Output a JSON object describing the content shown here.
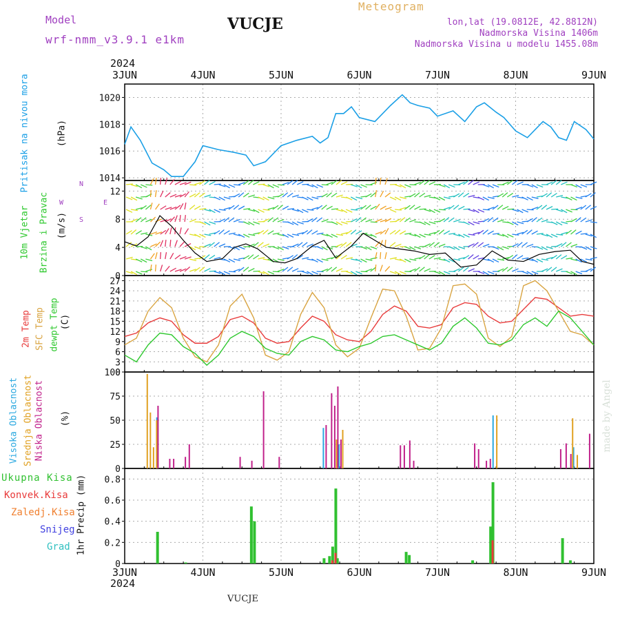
{
  "header": {
    "model_label": "Model",
    "model_name": "wrf-nmm_v3.9.1 e1km",
    "station": "VUCJE",
    "meteogram_label": "Meteogram",
    "lonlat": "lon,lat (19.0812E, 42.8812N)",
    "altitude": "Nadmorska Visina 1406m",
    "model_altitude": "Nadmorska Visina u modelu 1455.08m",
    "year_top": "2024",
    "year_bottom": "2024",
    "footer_station": "VUCJE",
    "credit": "made by Angel"
  },
  "colors": {
    "pressure": "#1a9fe6",
    "temp2m": "#e83a3a",
    "sfctemp": "#d9a441",
    "dewpt": "#2ec82e",
    "high_cloud": "#29a8e0",
    "mid_cloud": "#e0a020",
    "low_cloud": "#c0208a",
    "precip_total": "#30c030",
    "precip_conv": "#e83a3a",
    "purple_text": "#a040c0",
    "meteogram_text": "#e0b060"
  },
  "panel_labels": {
    "pressure": [
      "Pritisak na nivou mora"
    ],
    "pressure_unit": "(hPa)",
    "wind": [
      "10m Vjetar",
      "Brzina i Pravac"
    ],
    "wind_unit": "(m/s)",
    "wind_compass": "N",
    "wind_compass_s": "S",
    "wind_w": "W",
    "wind_e": "E",
    "temp": [
      "2m Temp",
      "SFC Temp",
      "dewpt Temp"
    ],
    "temp_unit": "(C)",
    "cloud": [
      "Visoka Oblacnost",
      "Srednja Oblacnost",
      "Niska Oblacnost"
    ],
    "cloud_unit": "(%)",
    "precip_legend": [
      "Ukupna Kisa",
      "Konvek.Kisa",
      "Zaledj.Kisa",
      "Snijeg",
      "Grad"
    ],
    "precip_unit": "1hr Precip (mm)"
  },
  "chart_data": [
    {
      "type": "line",
      "panel": "pressure",
      "x_labels": [
        "3JUN",
        "4JUN",
        "5JUN",
        "6JUN",
        "7JUN",
        "8JUN",
        "9JUN"
      ],
      "x": [
        0,
        0.08,
        0.2,
        0.35,
        0.5,
        0.6,
        0.75,
        0.9,
        1.0,
        1.2,
        1.4,
        1.55,
        1.65,
        1.8,
        2.0,
        2.2,
        2.4,
        2.5,
        2.6,
        2.7,
        2.8,
        2.9,
        3.0,
        3.2,
        3.4,
        3.55,
        3.65,
        3.75,
        3.9,
        4.0,
        4.2,
        4.35,
        4.5,
        4.6,
        4.75,
        4.85,
        5.0,
        5.15,
        5.35,
        5.45,
        5.55,
        5.65,
        5.75,
        5.9,
        6.0
      ],
      "series": [
        {
          "values": [
            1016.5,
            1017.8,
            1016.8,
            1015.1,
            1014.6,
            1014.1,
            1014.1,
            1015.2,
            1016.4,
            1016.1,
            1015.9,
            1015.7,
            1014.9,
            1015.2,
            1016.4,
            1016.8,
            1017.1,
            1016.6,
            1017.0,
            1018.8,
            1018.8,
            1019.3,
            1018.5,
            1018.2,
            1019.4,
            1020.2,
            1019.6,
            1019.4,
            1019.2,
            1018.6,
            1019.0,
            1018.2,
            1019.3,
            1019.6,
            1018.9,
            1018.5,
            1017.5,
            1017.0,
            1018.2,
            1017.8,
            1017.0,
            1016.8,
            1018.2,
            1017.6,
            1016.9
          ]
        }
      ],
      "ylim": [
        1013.8,
        1021
      ],
      "y_ticks": [
        1014,
        1016,
        1018,
        1020
      ]
    },
    {
      "type": "line",
      "panel": "wind",
      "x": [
        0,
        0.15,
        0.3,
        0.45,
        0.6,
        0.75,
        0.9,
        1.05,
        1.25,
        1.4,
        1.55,
        1.7,
        1.9,
        2.05,
        2.2,
        2.4,
        2.55,
        2.7,
        2.9,
        3.05,
        3.2,
        3.35,
        3.5,
        3.7,
        3.9,
        4.1,
        4.3,
        4.5,
        4.7,
        4.9,
        5.1,
        5.3,
        5.5,
        5.7,
        5.85,
        6.0
      ],
      "series": [
        {
          "values": [
            4.8,
            4.2,
            5.5,
            8.5,
            7.0,
            5.0,
            3.2,
            2.0,
            2.4,
            4.0,
            4.5,
            3.8,
            2.0,
            1.8,
            2.4,
            4.2,
            5.0,
            2.5,
            4.2,
            6.0,
            5.0,
            4.0,
            3.8,
            3.5,
            3.0,
            3.2,
            1.2,
            1.5,
            3.5,
            2.2,
            2.0,
            3.0,
            3.4,
            3.6,
            2.0,
            1.6
          ]
        }
      ],
      "ylim": [
        0,
        13.5
      ],
      "y_ticks": [
        0,
        4,
        8,
        12
      ]
    },
    {
      "type": "line",
      "panel": "temperature",
      "x": [
        0,
        0.15,
        0.3,
        0.45,
        0.6,
        0.75,
        0.9,
        1.05,
        1.2,
        1.35,
        1.5,
        1.65,
        1.8,
        1.95,
        2.1,
        2.25,
        2.4,
        2.55,
        2.7,
        2.85,
        3.0,
        3.15,
        3.3,
        3.45,
        3.6,
        3.75,
        3.9,
        4.05,
        4.2,
        4.35,
        4.5,
        4.65,
        4.8,
        4.95,
        5.1,
        5.25,
        5.4,
        5.55,
        5.7,
        5.85,
        6.0
      ],
      "series": [
        {
          "name": "2m Temp",
          "values": [
            10.5,
            11.5,
            14.5,
            16.0,
            15.0,
            11.0,
            8.5,
            8.5,
            10.5,
            15.5,
            16.5,
            14.5,
            10.0,
            8.5,
            9.0,
            13.0,
            16.5,
            15.0,
            11.0,
            9.5,
            9.0,
            12.0,
            17.0,
            19.5,
            18.0,
            13.5,
            13.0,
            14.0,
            19.0,
            20.5,
            20.0,
            16.5,
            14.5,
            15.0,
            18.5,
            22.0,
            21.5,
            19.0,
            16.5,
            17.0,
            16.5
          ]
        },
        {
          "name": "SFC Temp",
          "values": [
            8.0,
            10.0,
            18.0,
            22.0,
            19.0,
            10.0,
            4.5,
            3.0,
            8.0,
            19.5,
            23.0,
            16.0,
            5.0,
            3.5,
            6.0,
            17.0,
            23.5,
            19.0,
            8.0,
            4.5,
            7.0,
            16.0,
            24.5,
            24.0,
            16.5,
            6.5,
            7.0,
            13.0,
            25.5,
            26.0,
            23.0,
            10.0,
            7.5,
            10.5,
            25.5,
            27.0,
            24.0,
            18.0,
            12.0,
            11.0,
            8.0
          ]
        },
        {
          "name": "dewpt Temp",
          "values": [
            5.0,
            3.0,
            8.0,
            11.5,
            11.0,
            7.5,
            5.5,
            2.0,
            5.0,
            10.0,
            12.0,
            10.5,
            7.0,
            5.5,
            5.0,
            9.0,
            10.5,
            9.5,
            6.5,
            6.0,
            7.5,
            8.5,
            10.5,
            11.0,
            9.5,
            8.0,
            6.5,
            8.5,
            13.5,
            16.0,
            13.0,
            8.5,
            8.0,
            9.5,
            14.0,
            16.0,
            13.5,
            18.0,
            16.0,
            12.0,
            8.0
          ]
        }
      ],
      "ylim": [
        0,
        28.5
      ],
      "y_ticks": [
        0,
        3,
        6,
        9,
        12,
        15,
        18,
        21,
        24,
        27
      ]
    },
    {
      "type": "bar",
      "panel": "cloud",
      "ylim": [
        0,
        100
      ],
      "y_ticks": [
        0,
        25,
        50,
        75,
        100
      ],
      "series": [
        {
          "name": "Visoka Oblacnost",
          "x": [
            0.42,
            2.55,
            2.75,
            4.72,
            5.75
          ],
          "values": [
            53,
            42,
            25,
            55,
            22
          ]
        },
        {
          "name": "Srednja Oblacnost",
          "x": [
            0.28,
            0.32,
            0.36,
            0.4,
            2.7,
            2.78,
            4.75,
            5.72,
            5.78
          ],
          "values": [
            98,
            58,
            22,
            50,
            30,
            40,
            55,
            52,
            14
          ]
        },
        {
          "name": "Niska Oblacnost",
          "x": [
            0.4,
            0.55,
            0.6,
            0.75,
            0.8,
            1.45,
            1.6,
            1.75,
            1.95,
            2.55,
            2.62,
            2.66,
            2.7,
            2.74,
            3.5,
            3.55,
            3.62,
            3.67,
            4.45,
            4.5,
            4.6,
            4.65,
            5.55,
            5.62,
            5.68,
            5.92
          ],
          "values": [
            65,
            10,
            10,
            12,
            25,
            12,
            8,
            80,
            12,
            45,
            78,
            65,
            85,
            30,
            24,
            24,
            29,
            8,
            26,
            20,
            8,
            10,
            20,
            26,
            15,
            36
          ]
        }
      ]
    },
    {
      "type": "bar",
      "panel": "precipitation",
      "ylim": [
        0,
        0.9
      ],
      "y_ticks": [
        0,
        0.2,
        0.4,
        0.6,
        0.8
      ],
      "series": [
        {
          "name": "Ukupna Kisa",
          "x": [
            0.42,
            0.78,
            1.62,
            1.66,
            2.55,
            2.62,
            2.66,
            2.7,
            2.72,
            3.6,
            3.64,
            4.45,
            4.68,
            4.71,
            5.6,
            5.7
          ],
          "values": [
            0.3,
            0.01,
            0.54,
            0.4,
            0.05,
            0.07,
            0.16,
            0.71,
            0.05,
            0.11,
            0.08,
            0.03,
            0.35,
            0.77,
            0.24,
            0.03
          ]
        },
        {
          "name": "Konvek.Kisa",
          "x": [
            2.66,
            2.7,
            4.71
          ],
          "values": [
            0.03,
            0.1,
            0.22
          ]
        }
      ]
    }
  ]
}
